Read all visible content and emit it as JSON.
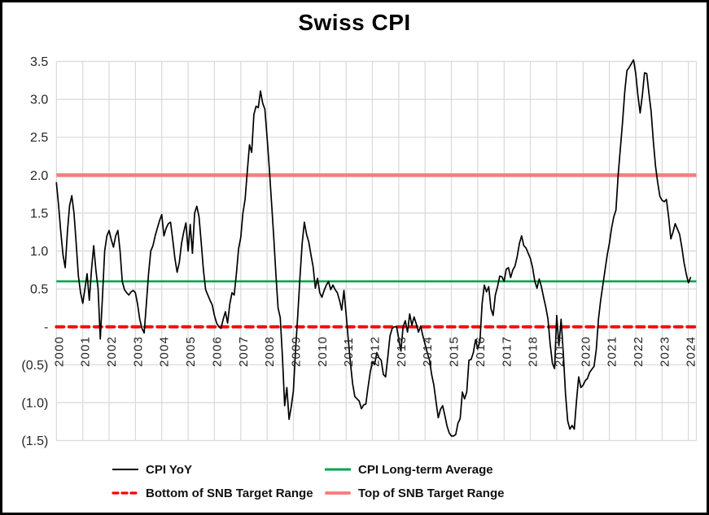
{
  "title": "Swiss CPI",
  "chart_data": {
    "type": "line",
    "title": "Swiss CPI",
    "xlabel": "",
    "ylabel": "",
    "ylim": [
      -1.5,
      3.5
    ],
    "grid": true,
    "grid_color": "#D9D9D9",
    "legend_position": "bottom",
    "frequency": "monthly",
    "x_range": [
      "2000-01",
      "2024-02"
    ],
    "x_tick_labels": [
      "2000",
      "2001",
      "2002",
      "2003",
      "2004",
      "2005",
      "2006",
      "2007",
      "2008",
      "2009",
      "2010",
      "2011",
      "2012",
      "2013",
      "2014",
      "2015",
      "2016",
      "2017",
      "2018",
      "2019",
      "2020",
      "2021",
      "2022",
      "2023",
      "2024"
    ],
    "y_ticks": [
      {
        "value": 3.5,
        "label": "3.5"
      },
      {
        "value": 3.0,
        "label": "3.0"
      },
      {
        "value": 2.5,
        "label": "2.5"
      },
      {
        "value": 2.0,
        "label": "2.0"
      },
      {
        "value": 1.5,
        "label": "1.5"
      },
      {
        "value": 1.0,
        "label": "1.0"
      },
      {
        "value": 0.5,
        "label": "0.5"
      },
      {
        "value": 0.0,
        "label": "-"
      },
      {
        "value": -0.5,
        "label": "(0.5)"
      },
      {
        "value": -1.0,
        "label": "(1.0)"
      },
      {
        "value": -1.5,
        "label": "(1.5)"
      }
    ],
    "series": [
      {
        "name": "CPI YoY",
        "type": "line",
        "color": "#000000",
        "style": "solid",
        "width": 1.7,
        "start": "2000-01",
        "values": [
          1.9,
          1.6,
          1.25,
          0.95,
          0.78,
          1.25,
          1.6,
          1.73,
          1.5,
          1.1,
          0.67,
          0.45,
          0.31,
          0.5,
          0.7,
          0.35,
          0.75,
          1.07,
          0.75,
          0.5,
          -0.16,
          0.4,
          1.0,
          1.2,
          1.27,
          1.15,
          1.05,
          1.2,
          1.27,
          1.0,
          0.6,
          0.49,
          0.45,
          0.42,
          0.46,
          0.48,
          0.45,
          0.3,
          0.1,
          -0.02,
          -0.08,
          0.3,
          0.7,
          1.0,
          1.07,
          1.2,
          1.3,
          1.4,
          1.48,
          1.2,
          1.3,
          1.36,
          1.38,
          1.15,
          0.9,
          0.72,
          0.85,
          1.1,
          1.25,
          1.37,
          1.0,
          1.35,
          0.97,
          1.5,
          1.59,
          1.45,
          1.11,
          0.75,
          0.49,
          0.42,
          0.35,
          0.29,
          0.15,
          0.05,
          0.0,
          -0.02,
          0.1,
          0.2,
          0.05,
          0.3,
          0.45,
          0.42,
          0.7,
          1.03,
          1.18,
          1.5,
          1.68,
          2.05,
          2.4,
          2.3,
          2.8,
          2.91,
          2.89,
          3.11,
          2.95,
          2.87,
          2.5,
          2.1,
          1.65,
          1.2,
          0.7,
          0.25,
          0.12,
          -0.4,
          -1.04,
          -0.8,
          -1.22,
          -1.05,
          -0.85,
          -0.3,
          0.15,
          0.65,
          1.1,
          1.38,
          1.22,
          1.12,
          0.95,
          0.79,
          0.51,
          0.64,
          0.45,
          0.39,
          0.48,
          0.55,
          0.6,
          0.49,
          0.55,
          0.49,
          0.45,
          0.35,
          0.22,
          0.48,
          0.17,
          -0.16,
          -0.48,
          -0.75,
          -0.92,
          -0.95,
          -0.98,
          -1.08,
          -1.03,
          -1.02,
          -0.8,
          -0.6,
          -0.46,
          -0.5,
          -0.34,
          -0.41,
          -0.44,
          -0.63,
          -0.66,
          -0.4,
          -0.12,
          -0.02,
          0.0,
          0.0,
          -0.16,
          -0.32,
          0.0,
          0.08,
          -0.07,
          0.17,
          0.02,
          0.13,
          0.04,
          -0.07,
          0.01,
          -0.12,
          -0.23,
          -0.34,
          -0.44,
          -0.63,
          -0.77,
          -0.99,
          -1.2,
          -1.09,
          -1.04,
          -1.17,
          -1.31,
          -1.4,
          -1.44,
          -1.44,
          -1.42,
          -1.27,
          -1.21,
          -0.86,
          -0.95,
          -0.86,
          -0.44,
          -0.43,
          -0.34,
          -0.17,
          -0.29,
          -0.19,
          0.31,
          0.55,
          0.46,
          0.53,
          0.24,
          0.15,
          0.42,
          0.53,
          0.67,
          0.66,
          0.6,
          0.76,
          0.78,
          0.65,
          0.75,
          0.8,
          0.93,
          1.1,
          1.2,
          1.07,
          1.04,
          0.97,
          0.9,
          0.78,
          0.6,
          0.51,
          0.63,
          0.53,
          0.39,
          0.26,
          0.1,
          -0.23,
          -0.48,
          -0.55,
          0.15,
          -0.25,
          0.1,
          -0.34,
          -0.88,
          -1.24,
          -1.35,
          -1.3,
          -1.35,
          -0.98,
          -0.66,
          -0.8,
          -0.77,
          -0.71,
          -0.68,
          -0.6,
          -0.56,
          -0.52,
          -0.3,
          0.1,
          0.35,
          0.55,
          0.75,
          0.95,
          1.1,
          1.3,
          1.45,
          1.54,
          2.0,
          2.35,
          2.7,
          3.1,
          3.38,
          3.42,
          3.47,
          3.52,
          3.34,
          3.05,
          2.82,
          3.05,
          3.35,
          3.34,
          3.08,
          2.84,
          2.45,
          2.12,
          1.9,
          1.72,
          1.67,
          1.65,
          1.68,
          1.45,
          1.16,
          1.25,
          1.36,
          1.29,
          1.22,
          1.05,
          0.85,
          0.7,
          0.58,
          0.65
        ]
      },
      {
        "name": "CPI Long-term Average",
        "type": "hline",
        "color": "#00A550",
        "style": "solid",
        "width": 2.6,
        "value": 0.6
      },
      {
        "name": "Bottom of SNB Target Range",
        "type": "hline",
        "color": "#FF0000",
        "style": "dashed",
        "width": 3.8,
        "value": 0.0
      },
      {
        "name": "Top of SNB Target Range",
        "type": "hline",
        "color": "#F57F7F",
        "style": "solid",
        "width": 4.6,
        "value": 2.0
      }
    ],
    "tick_label_color": "#262626"
  }
}
